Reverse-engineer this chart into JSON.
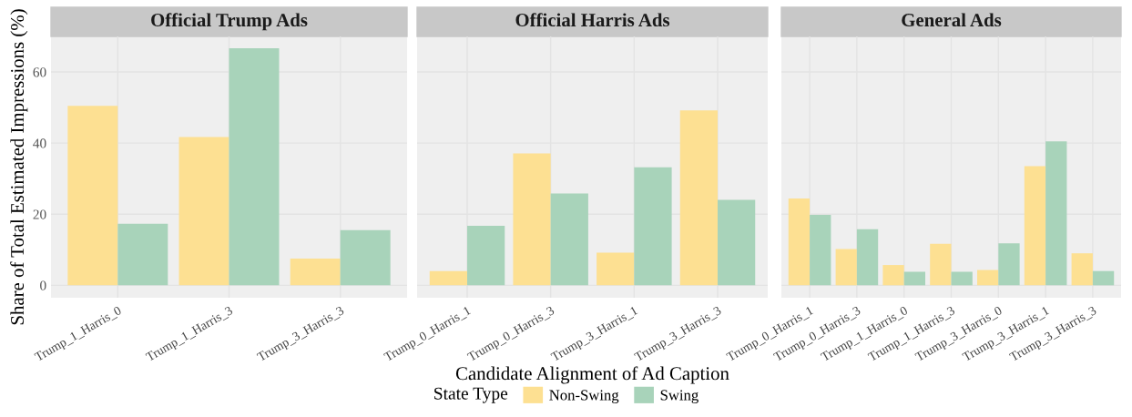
{
  "chart_data": [
    {
      "type": "bar",
      "title": "Official Trump Ads",
      "ylabel": "Share of Total Estimated Impressions (%)",
      "categories": [
        "Trump_1_Harris_0",
        "Trump_1_Harris_3",
        "Trump_3_Harris_3"
      ],
      "ylim": [
        -3.5,
        70
      ],
      "yticks": [
        0,
        20,
        40,
        60
      ],
      "grid": true,
      "series": [
        {
          "color": "#fde092",
          "values": [
            50.5,
            41.7,
            7.5
          ]
        },
        {
          "color": "#a8d3ba",
          "values": [
            17.3,
            66.7,
            15.5
          ]
        }
      ]
    },
    {
      "type": "bar",
      "title": "Official Harris Ads",
      "xlabel": "Candidate Alignment of Ad Caption",
      "legend_title": "State Type",
      "legend": "bottom",
      "categories": [
        "Trump_0_Harris_1",
        "Trump_0_Harris_3",
        "Trump_3_Harris_1",
        "Trump_3_Harris_3"
      ],
      "ylim": [
        -3.5,
        70
      ],
      "yticks": [
        0,
        20,
        40,
        60
      ],
      "grid": true,
      "tick_labels": "x",
      "series": [
        {
          "name": "Non-Swing",
          "color": "#fde092",
          "values": [
            4.0,
            37.1,
            9.2,
            49.2
          ]
        },
        {
          "name": "Swing",
          "color": "#a8d3ba",
          "values": [
            16.7,
            25.8,
            33.2,
            24.0
          ]
        }
      ]
    },
    {
      "type": "bar",
      "title": "General Ads",
      "categories": [
        "Trump_0_Harris_1",
        "Trump_0_Harris_3",
        "Trump_1_Harris_0",
        "Trump_1_Harris_3",
        "Trump_3_Harris_0",
        "Trump_3_Harris_1",
        "Trump_3_Harris_3"
      ],
      "ylim": [
        -3.5,
        70
      ],
      "yticks": [
        0,
        20,
        40,
        60
      ],
      "grid": true,
      "tick_labels": "x",
      "series": [
        {
          "color": "#fde092",
          "values": [
            24.4,
            10.2,
            5.7,
            11.7,
            4.3,
            33.5,
            9.0
          ]
        },
        {
          "color": "#a8d3ba",
          "values": [
            19.8,
            15.8,
            3.8,
            3.8,
            11.8,
            40.5,
            4.0
          ]
        }
      ]
    }
  ]
}
